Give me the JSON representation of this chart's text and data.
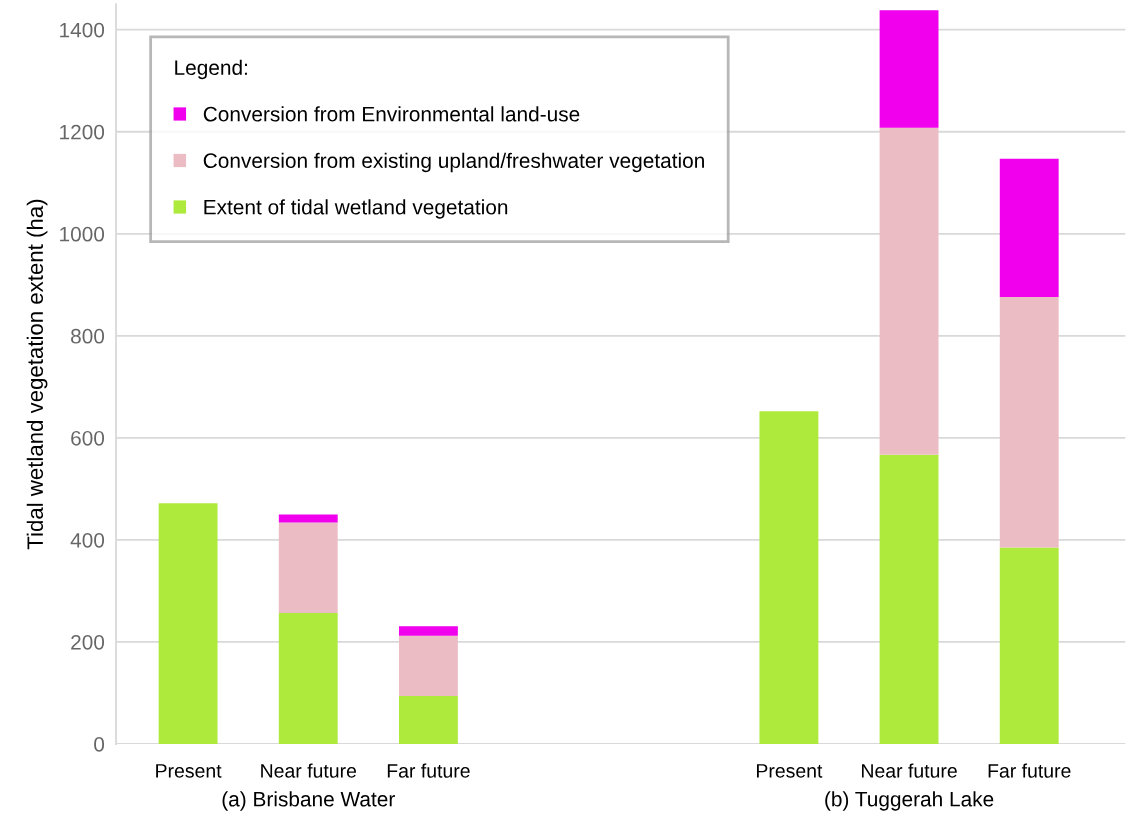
{
  "chart_data": {
    "type": "bar",
    "stacked": true,
    "ylabel": "Tidal wetland vegetation extent (ha)",
    "legend_title": "Legend:",
    "categories": [
      "Present",
      "Near future",
      "Far future",
      null,
      null,
      "Present",
      "Near future",
      "Far future"
    ],
    "series": [
      {
        "name": "Extent of tidal wetland vegetation",
        "color": "#aeea3c",
        "values": [
          472,
          257,
          94,
          null,
          null,
          652,
          567,
          385
        ]
      },
      {
        "name": "Conversion from existing upland/freshwater vegetation",
        "color": "#ebbcc4",
        "values": [
          null,
          177,
          118,
          null,
          null,
          null,
          641,
          491
        ]
      },
      {
        "name": "Conversion from Environmental land-use",
        "color": "#f000ec",
        "values": [
          null,
          16,
          19,
          null,
          null,
          null,
          230,
          271
        ]
      }
    ],
    "ylim": [
      0,
      1450
    ],
    "yticks": [
      0,
      200,
      400,
      600,
      800,
      1000,
      1200,
      1400
    ],
    "grid": "y",
    "legend": "top left",
    "annotations": [
      "(a) Brisbane Water",
      "(b) Tuggerah Lake"
    ]
  }
}
